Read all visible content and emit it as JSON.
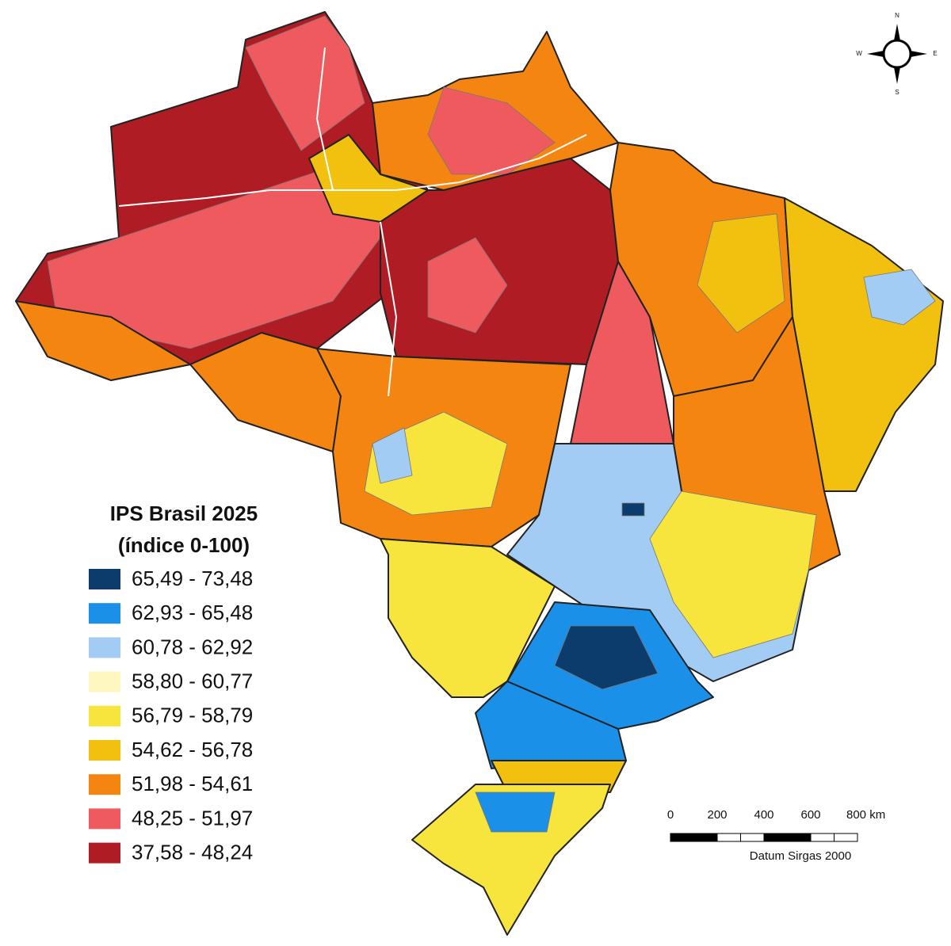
{
  "legend": {
    "title": "IPS Brasil 2025",
    "subtitle": "(índice 0-100)",
    "items": [
      {
        "label": "65,49 - 73,48",
        "color": "#0b3c6b"
      },
      {
        "label": "62,93 - 65,48",
        "color": "#1a90e8"
      },
      {
        "label": "60,78 - 62,92",
        "color": "#a3ccf5"
      },
      {
        "label": "58,80 - 60,77",
        "color": "#fff6c0"
      },
      {
        "label": "56,79 - 58,79",
        "color": "#f7e43c"
      },
      {
        "label": "54,62 - 56,78",
        "color": "#f2c10f"
      },
      {
        "label": "51,98 - 54,61",
        "color": "#f58511"
      },
      {
        "label": "48,25 - 51,97",
        "color": "#ef5a5e"
      },
      {
        "label": "37,58 - 48,24",
        "color": "#b01c24"
      }
    ]
  },
  "scale_bar": {
    "labels": [
      "0",
      "200",
      "400",
      "600",
      "800 km"
    ],
    "datum": "Datum Sirgas 2000"
  },
  "compass": {
    "n": "N",
    "s": "S",
    "e": "E",
    "w": "W"
  }
}
